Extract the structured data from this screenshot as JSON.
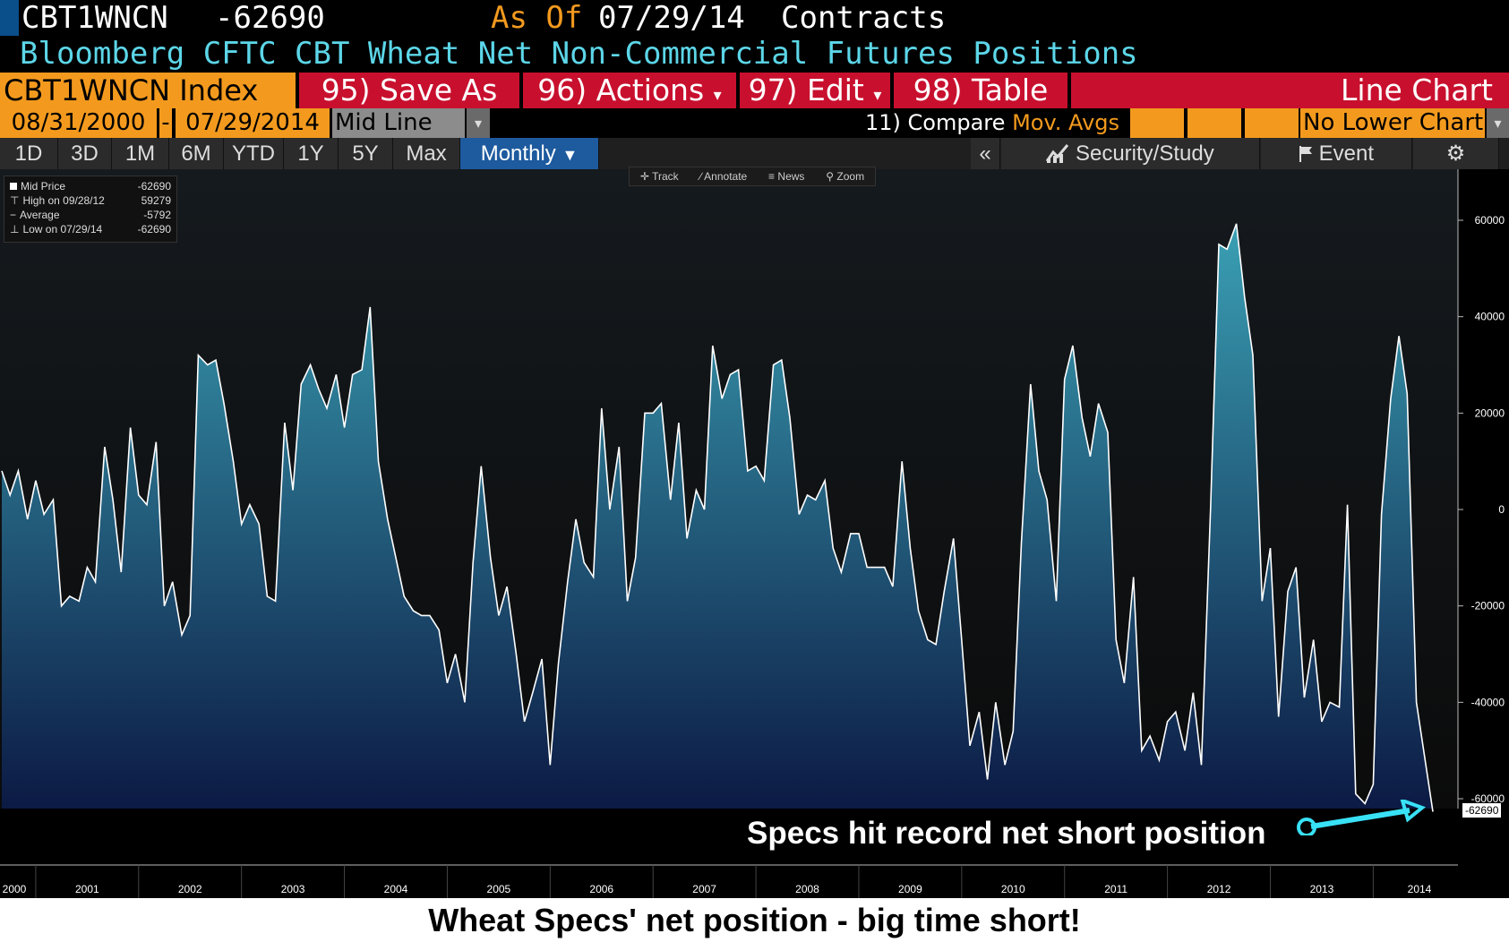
{
  "header": {
    "ticker": "CBT1WNCN",
    "last_value": "-62690",
    "as_of_label": "As Of",
    "as_of_date": "07/29/14",
    "units": "Contracts",
    "description": "Bloomberg CFTC CBT Wheat Net Non-Commercial Futures Positions"
  },
  "toolbar": {
    "security": "CBT1WNCN Index",
    "save_as": "95) Save As",
    "actions": "96) Actions",
    "edit": "97) Edit",
    "table": "98) Table",
    "chart_type": "Line Chart",
    "start_date": "08/31/2000",
    "end_date": "07/29/2014",
    "price_field": "Mid Line",
    "compare_prefix": "11)",
    "compare_label": "Compare",
    "mov_avgs": "Mov. Avgs",
    "lower_chart": "No Lower Chart",
    "periods": [
      "1D",
      "3D",
      "1M",
      "6M",
      "YTD",
      "1Y",
      "5Y",
      "Max"
    ],
    "frequency": "Monthly",
    "collapse": "«",
    "security_study": "Security/Study",
    "event": "Event",
    "chart_tools": [
      "Track",
      "Annotate",
      "News",
      "Zoom"
    ]
  },
  "legend": {
    "rows": [
      {
        "label": "Mid Price",
        "value": "-62690"
      },
      {
        "label": "High on 09/28/12",
        "value": "59279"
      },
      {
        "label": "Average",
        "value": "-5792"
      },
      {
        "label": "Low on 07/29/14",
        "value": "-62690"
      }
    ]
  },
  "annotation": "Specs hit record net short position",
  "last_label": "-62690",
  "caption": "Wheat Specs' net position - big time short!",
  "colors": {
    "header_blue": "#5cd6e8",
    "accent_orange": "#f39a1e",
    "button_red": "#c8102e",
    "line": "#ffffff",
    "fill_top": "#3aa0b4",
    "fill_bottom": "#0c1a44",
    "annotation_arrow": "#38e1f5"
  },
  "chart_data": {
    "type": "area",
    "x_tick_labels": [
      "2000",
      "2001",
      "2002",
      "2003",
      "2004",
      "2005",
      "2006",
      "2007",
      "2008",
      "2009",
      "2010",
      "2011",
      "2012",
      "2013",
      "2014"
    ],
    "y_tick_labels": [
      "60000",
      "40000",
      "20000",
      "0",
      "-20000",
      "-40000",
      "-60000"
    ],
    "ylim": [
      -75000,
      70000
    ],
    "xlim": [
      2000.67,
      2014.58
    ],
    "series": [
      {
        "name": "Mid Price",
        "points": [
          [
            2000.67,
            8000
          ],
          [
            2000.75,
            3000
          ],
          [
            2000.83,
            8000
          ],
          [
            2000.92,
            -2000
          ],
          [
            2001.0,
            6000
          ],
          [
            2001.08,
            -1000
          ],
          [
            2001.17,
            2000
          ],
          [
            2001.25,
            -20000
          ],
          [
            2001.33,
            -18000
          ],
          [
            2001.42,
            -19000
          ],
          [
            2001.5,
            -12000
          ],
          [
            2001.58,
            -15000
          ],
          [
            2001.67,
            13000
          ],
          [
            2001.75,
            2000
          ],
          [
            2001.83,
            -13000
          ],
          [
            2001.92,
            17000
          ],
          [
            2002.0,
            3000
          ],
          [
            2002.08,
            1000
          ],
          [
            2002.17,
            14000
          ],
          [
            2002.25,
            -20000
          ],
          [
            2002.33,
            -15000
          ],
          [
            2002.42,
            -26000
          ],
          [
            2002.5,
            -22000
          ],
          [
            2002.58,
            32000
          ],
          [
            2002.67,
            30000
          ],
          [
            2002.75,
            31000
          ],
          [
            2002.83,
            22000
          ],
          [
            2002.92,
            10000
          ],
          [
            2003.0,
            -3000
          ],
          [
            2003.08,
            1000
          ],
          [
            2003.17,
            -3000
          ],
          [
            2003.25,
            -18000
          ],
          [
            2003.33,
            -19000
          ],
          [
            2003.42,
            18000
          ],
          [
            2003.5,
            4000
          ],
          [
            2003.58,
            26000
          ],
          [
            2003.67,
            30000
          ],
          [
            2003.75,
            25000
          ],
          [
            2003.83,
            21000
          ],
          [
            2003.92,
            28000
          ],
          [
            2004.0,
            17000
          ],
          [
            2004.08,
            28000
          ],
          [
            2004.17,
            29000
          ],
          [
            2004.25,
            42000
          ],
          [
            2004.33,
            10000
          ],
          [
            2004.42,
            -2000
          ],
          [
            2004.5,
            -10000
          ],
          [
            2004.58,
            -18000
          ],
          [
            2004.67,
            -21000
          ],
          [
            2004.75,
            -22000
          ],
          [
            2004.83,
            -22000
          ],
          [
            2004.92,
            -25000
          ],
          [
            2005.0,
            -36000
          ],
          [
            2005.08,
            -30000
          ],
          [
            2005.17,
            -40000
          ],
          [
            2005.25,
            -11000
          ],
          [
            2005.33,
            9000
          ],
          [
            2005.42,
            -10000
          ],
          [
            2005.5,
            -22000
          ],
          [
            2005.58,
            -16000
          ],
          [
            2005.67,
            -30000
          ],
          [
            2005.75,
            -44000
          ],
          [
            2005.83,
            -38000
          ],
          [
            2005.92,
            -31000
          ],
          [
            2006.0,
            -53000
          ],
          [
            2006.08,
            -32000
          ],
          [
            2006.17,
            -15000
          ],
          [
            2006.25,
            -2000
          ],
          [
            2006.33,
            -11000
          ],
          [
            2006.42,
            -14000
          ],
          [
            2006.5,
            21000
          ],
          [
            2006.58,
            0
          ],
          [
            2006.67,
            13000
          ],
          [
            2006.75,
            -19000
          ],
          [
            2006.83,
            -10000
          ],
          [
            2006.92,
            20000
          ],
          [
            2007.0,
            20000
          ],
          [
            2007.08,
            22000
          ],
          [
            2007.17,
            2000
          ],
          [
            2007.25,
            18000
          ],
          [
            2007.33,
            -6000
          ],
          [
            2007.42,
            4000
          ],
          [
            2007.5,
            0
          ],
          [
            2007.58,
            34000
          ],
          [
            2007.67,
            23000
          ],
          [
            2007.75,
            28000
          ],
          [
            2007.83,
            29000
          ],
          [
            2007.92,
            8000
          ],
          [
            2008.0,
            9000
          ],
          [
            2008.08,
            6000
          ],
          [
            2008.17,
            30000
          ],
          [
            2008.25,
            31000
          ],
          [
            2008.33,
            19000
          ],
          [
            2008.42,
            -1000
          ],
          [
            2008.5,
            3000
          ],
          [
            2008.58,
            2000
          ],
          [
            2008.67,
            6000
          ],
          [
            2008.75,
            -8000
          ],
          [
            2008.83,
            -13000
          ],
          [
            2008.92,
            -5000
          ],
          [
            2009.0,
            -5000
          ],
          [
            2009.08,
            -12000
          ],
          [
            2009.17,
            -12000
          ],
          [
            2009.25,
            -12000
          ],
          [
            2009.33,
            -16000
          ],
          [
            2009.42,
            10000
          ],
          [
            2009.5,
            -8000
          ],
          [
            2009.58,
            -21000
          ],
          [
            2009.67,
            -27000
          ],
          [
            2009.75,
            -28000
          ],
          [
            2009.83,
            -17000
          ],
          [
            2009.92,
            -6000
          ],
          [
            2010.0,
            -27000
          ],
          [
            2010.08,
            -49000
          ],
          [
            2010.17,
            -42000
          ],
          [
            2010.25,
            -56000
          ],
          [
            2010.33,
            -40000
          ],
          [
            2010.42,
            -53000
          ],
          [
            2010.5,
            -46000
          ],
          [
            2010.58,
            -7000
          ],
          [
            2010.67,
            26000
          ],
          [
            2010.75,
            8000
          ],
          [
            2010.83,
            2000
          ],
          [
            2010.92,
            -19000
          ],
          [
            2011.0,
            27000
          ],
          [
            2011.08,
            34000
          ],
          [
            2011.17,
            19000
          ],
          [
            2011.25,
            11000
          ],
          [
            2011.33,
            22000
          ],
          [
            2011.42,
            16000
          ],
          [
            2011.5,
            -27000
          ],
          [
            2011.58,
            -36000
          ],
          [
            2011.67,
            -14000
          ],
          [
            2011.75,
            -50000
          ],
          [
            2011.83,
            -47000
          ],
          [
            2011.92,
            -52000
          ],
          [
            2012.0,
            -44000
          ],
          [
            2012.08,
            -42000
          ],
          [
            2012.17,
            -50000
          ],
          [
            2012.25,
            -38000
          ],
          [
            2012.33,
            -53000
          ],
          [
            2012.42,
            1000
          ],
          [
            2012.5,
            55000
          ],
          [
            2012.58,
            54000
          ],
          [
            2012.67,
            59279
          ],
          [
            2012.75,
            44000
          ],
          [
            2012.83,
            32000
          ],
          [
            2012.92,
            -19000
          ],
          [
            2013.0,
            -8000
          ],
          [
            2013.08,
            -43000
          ],
          [
            2013.17,
            -17000
          ],
          [
            2013.25,
            -12000
          ],
          [
            2013.33,
            -39000
          ],
          [
            2013.42,
            -27000
          ],
          [
            2013.5,
            -44000
          ],
          [
            2013.58,
            -40000
          ],
          [
            2013.67,
            -41000
          ],
          [
            2013.75,
            1000
          ],
          [
            2013.83,
            -59000
          ],
          [
            2013.92,
            -61000
          ],
          [
            2014.0,
            -57000
          ],
          [
            2014.08,
            -1000
          ],
          [
            2014.17,
            23000
          ],
          [
            2014.25,
            36000
          ],
          [
            2014.33,
            24000
          ],
          [
            2014.42,
            -40000
          ],
          [
            2014.58,
            -62690
          ]
        ]
      }
    ]
  }
}
